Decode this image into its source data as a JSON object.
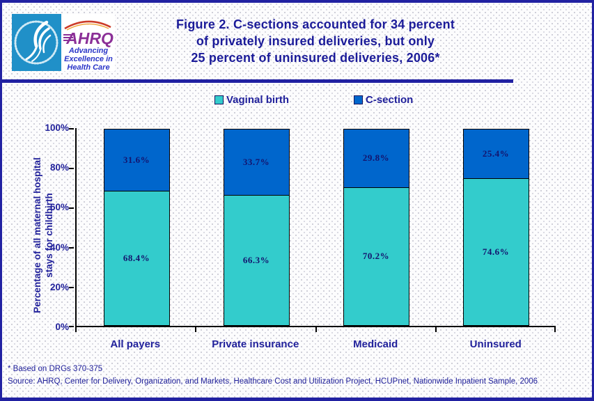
{
  "header": {
    "logo": {
      "agency_acronym": "AHRQ",
      "tagline_lines": [
        "Advancing",
        "Excellence in",
        "Health Care"
      ]
    },
    "title_lines": [
      "Figure 2. C-sections accounted for 34 percent",
      "of privately insured deliveries, but only",
      "25 percent of uninsured deliveries, 2006*"
    ]
  },
  "chart_data": {
    "type": "bar",
    "stacked": true,
    "categories": [
      "All payers",
      "Private insurance",
      "Medicaid",
      "Uninsured"
    ],
    "series": [
      {
        "name": "Vaginal birth",
        "color": "#33cccc",
        "values": [
          68.4,
          66.3,
          70.2,
          74.6
        ],
        "labels": [
          "68.4%",
          "66.3%",
          "70.2%",
          "74.6%"
        ]
      },
      {
        "name": "C-section",
        "color": "#0066cc",
        "values": [
          31.6,
          33.7,
          29.8,
          25.4
        ],
        "labels": [
          "31.6%",
          "33.7%",
          "29.8%",
          "25.4%"
        ]
      }
    ],
    "ylabel": "Percentage of all maternal hospital stays for childbirth",
    "ylabel_lines": [
      "Percentage of all maternal hospital",
      "stays for childbirth"
    ],
    "yticks": [
      "0%",
      "20%",
      "40%",
      "60%",
      "80%",
      "100%"
    ],
    "ylim": [
      0,
      100
    ],
    "legend_position": "top",
    "grid": false
  },
  "footnotes": {
    "note": "* Based on DRGs 370-375",
    "source": "Source: AHRQ, Center for Delivery, Organization, and Markets, Healthcare Cost and Utilization Project, HCUPnet, Nationwide Inpatient Sample, 2006"
  },
  "colors": {
    "navy_accent": "#2121a2",
    "title_text": "#1b1b99",
    "vaginal_birth": "#33cccc",
    "c_section": "#0066cc",
    "hhs_square": "#2090c8",
    "ahrq_purple": "#8b2f97"
  }
}
